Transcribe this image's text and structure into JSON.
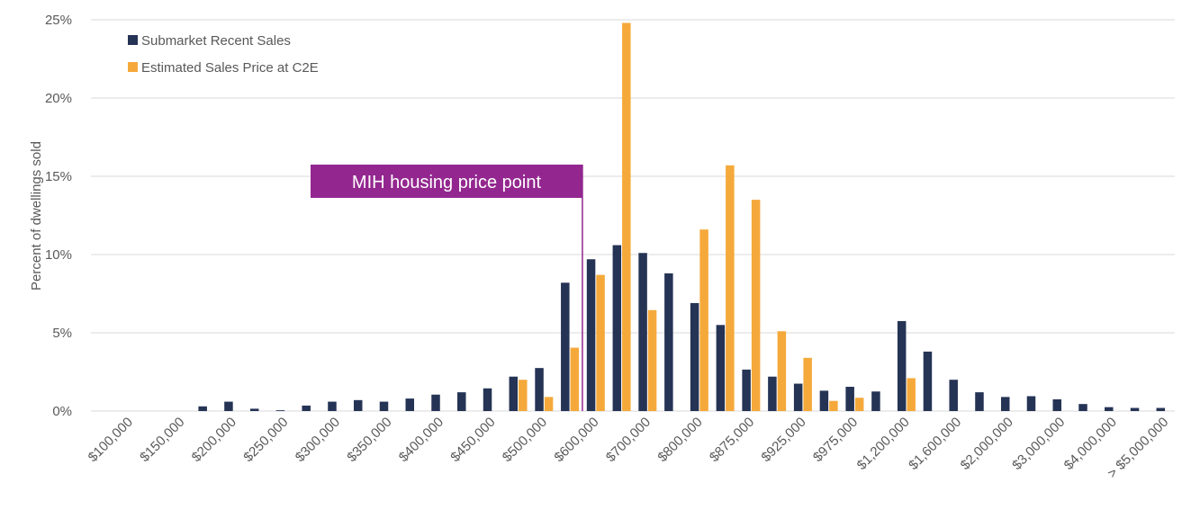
{
  "chart_data": {
    "type": "bar",
    "y_label": "Percent of dwellings sold",
    "annotation": "MIH housing price point",
    "categories": [
      null,
      "$100,000",
      null,
      "$150,000",
      null,
      "$200,000",
      null,
      "$250,000",
      null,
      "$300,000",
      null,
      "$350,000",
      null,
      "$400,000",
      null,
      "$450,000",
      null,
      "$500,000",
      null,
      "$600,000",
      null,
      "$700,000",
      null,
      "$800,000",
      null,
      "$875,000",
      null,
      "$925,000",
      null,
      "$975,000",
      null,
      "$1,200,000",
      null,
      "$1,600,000",
      null,
      "$2,000,000",
      null,
      "$3,000,000",
      null,
      "$4,000,000",
      null,
      "> $5,000,000"
    ],
    "series": [
      {
        "name": "Submarket Recent Sales",
        "color": "#253355",
        "values": [
          null,
          null,
          null,
          null,
          0.3,
          0.6,
          0.15,
          0.05,
          0.35,
          0.6,
          0.7,
          0.6,
          0.8,
          1.05,
          1.2,
          1.45,
          2.2,
          2.75,
          8.2,
          9.7,
          10.6,
          10.1,
          8.8,
          6.9,
          5.5,
          2.65,
          2.2,
          1.75,
          1.3,
          1.55,
          1.25,
          5.75,
          3.8,
          2.0,
          1.2,
          0.9,
          0.95,
          0.75,
          0.45,
          0.25,
          0.2,
          0.2
        ]
      },
      {
        "name": "Estimated Sales Price at C2E",
        "color": "#f5a93b",
        "values": [
          null,
          null,
          null,
          null,
          null,
          null,
          null,
          null,
          null,
          null,
          null,
          null,
          null,
          null,
          null,
          null,
          2.0,
          0.9,
          4.05,
          8.7,
          24.8,
          6.45,
          null,
          11.6,
          15.7,
          13.5,
          5.1,
          3.4,
          0.65,
          0.85,
          null,
          2.1,
          null,
          null,
          null,
          null,
          null,
          null,
          null,
          null,
          null,
          null
        ]
      }
    ],
    "ylim": [
      0,
      25
    ],
    "yticks": [
      {
        "value": 0,
        "label": "0%"
      },
      {
        "value": 5,
        "label": "5%"
      },
      {
        "value": 10,
        "label": "10%"
      },
      {
        "value": 15,
        "label": "15%"
      },
      {
        "value": 20,
        "label": "20%"
      },
      {
        "value": 25,
        "label": "25%"
      }
    ],
    "grid": true,
    "legend": "top-left"
  }
}
